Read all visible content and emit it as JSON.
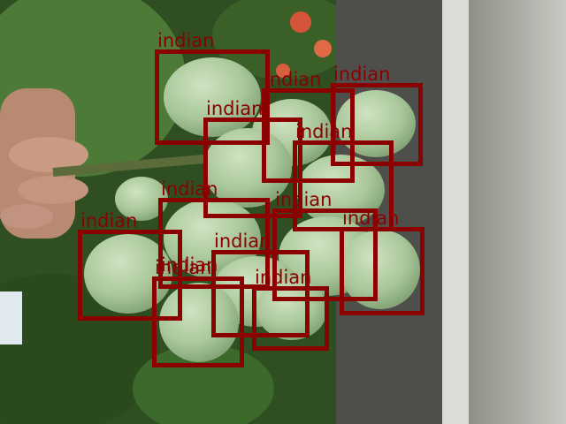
{
  "image": {
    "description_icon": "mango-photo",
    "colors": {
      "box": "#8b0000",
      "mango": "#a9c79a",
      "foliage": "#3f6a2c",
      "wall": "#b4b4ae",
      "sky": "#dfe9ee"
    }
  },
  "detections": [
    {
      "label": "indian"
    },
    {
      "label": "indian"
    },
    {
      "label": "indian"
    },
    {
      "label": "indian"
    },
    {
      "label": "indian"
    },
    {
      "label": "indian"
    },
    {
      "label": "indian"
    },
    {
      "label": "indian"
    },
    {
      "label": "indian"
    },
    {
      "label": "indian"
    },
    {
      "label": "indian"
    },
    {
      "label": "indian"
    },
    {
      "label": "indian"
    }
  ]
}
